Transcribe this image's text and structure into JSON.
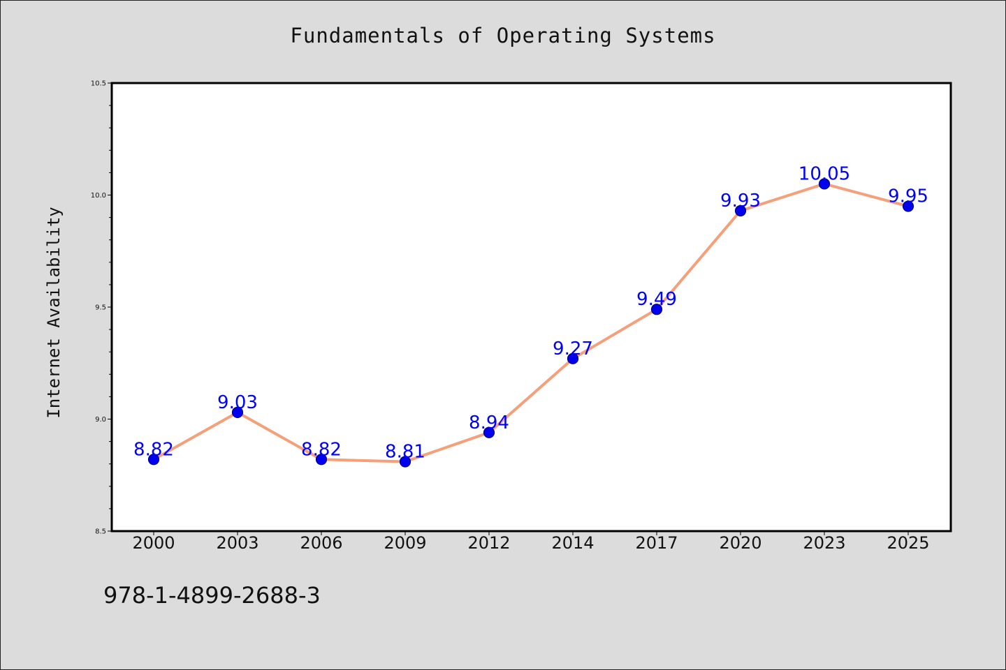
{
  "page": {
    "title": "Fundamentals of Operating Systems",
    "footer_text": "978-1-4899-2688-3"
  },
  "colors": {
    "background": "#dcdcdc",
    "plot_background": "#ffffff",
    "line": "#f4a07a",
    "marker_fill": "#0000ee",
    "marker_stroke": "#000080",
    "data_label": "#0000ff",
    "axis": "#000000"
  },
  "chart_data": {
    "type": "line",
    "title": "Fundamentals of Operating Systems",
    "xlabel": "",
    "ylabel": "Internet Availability",
    "categories": [
      "2000",
      "2003",
      "2006",
      "2009",
      "2012",
      "2014",
      "2017",
      "2020",
      "2023",
      "2025"
    ],
    "series": [
      {
        "values": [
          8.82,
          9.03,
          8.82,
          8.81,
          8.94,
          9.27,
          9.49,
          9.93,
          10.05,
          9.95
        ]
      }
    ],
    "data_labels": [
      "8.82",
      "9.03",
      "8.82",
      "8.81",
      "8.94",
      "9.27",
      "9.49",
      "9.93",
      "10.05",
      "9.95"
    ],
    "ylim": [
      8.5,
      10.5
    ],
    "yticks": [
      "8.5",
      "9.0",
      "9.5",
      "10.0",
      "10.5"
    ],
    "y_minor_step": 0.1,
    "grid": false,
    "legend": "none"
  }
}
